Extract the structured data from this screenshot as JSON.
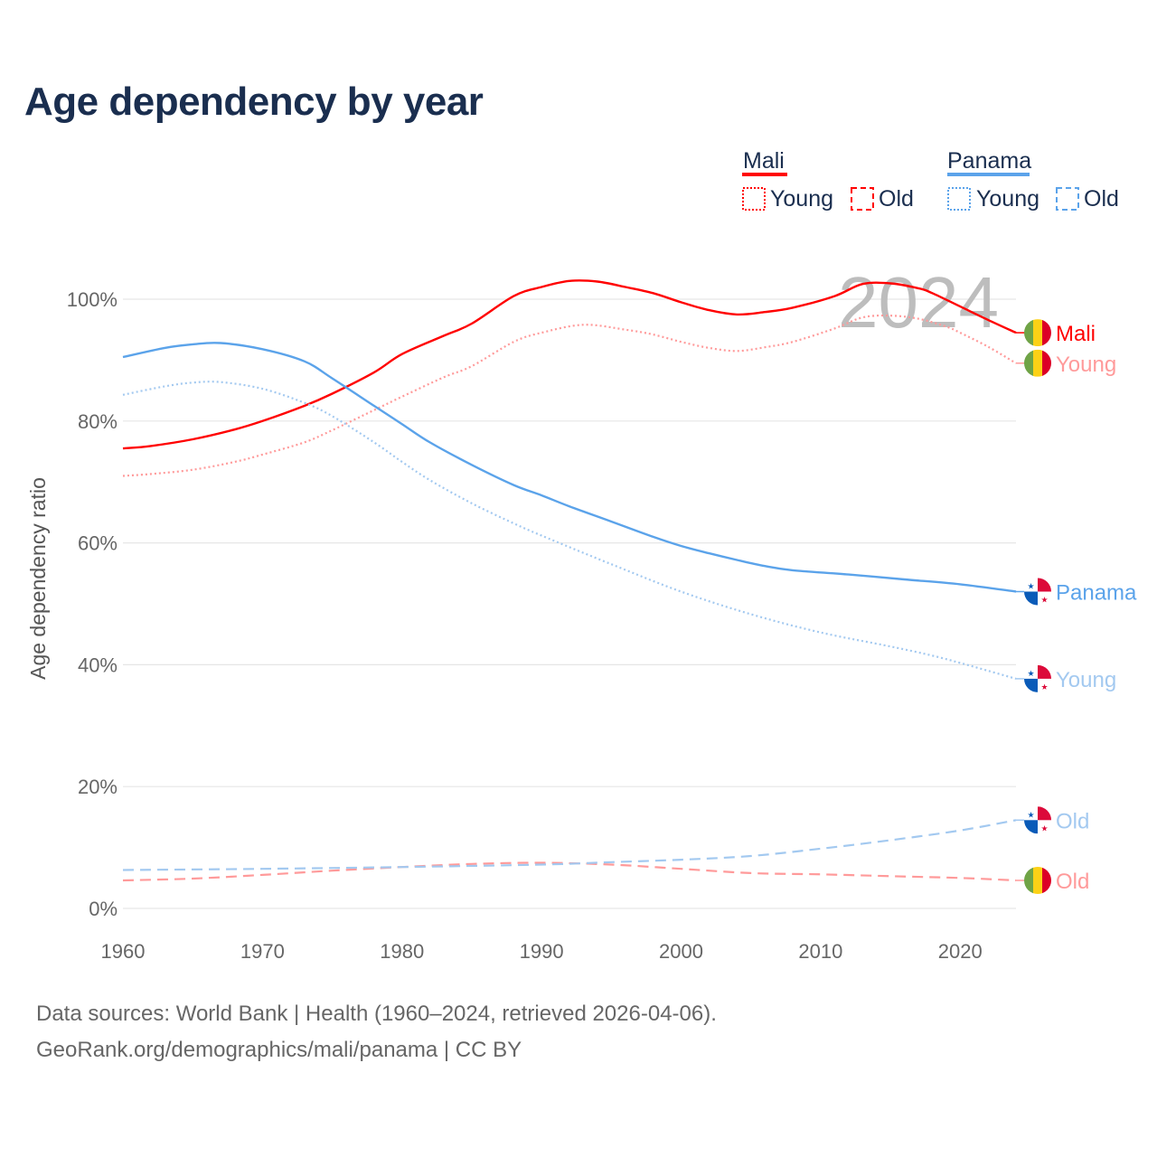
{
  "title": "Age dependency by year",
  "sources": {
    "line1": "Data sources: World Bank | Health (1960–2024, retrieved 2026-04-06).",
    "line2": "GeoRank.org/demographics/mali/panama | CC BY"
  },
  "legend": {
    "groups": [
      {
        "name": "Mali",
        "color": "#ff0000",
        "items": [
          "Young",
          "Old"
        ]
      },
      {
        "name": "Panama",
        "color": "#5ba3ea",
        "items": [
          "Young",
          "Old"
        ]
      }
    ]
  },
  "chart_data": {
    "type": "line",
    "title": "Age dependency by year",
    "xlabel": "",
    "ylabel": "Age dependency ratio",
    "xlim": [
      1960,
      2024
    ],
    "ylim": [
      0,
      100
    ],
    "xticks": [
      "1960",
      "1970",
      "1980",
      "1990",
      "2000",
      "2010",
      "2020"
    ],
    "yticks": [
      "0%",
      "20%",
      "40%",
      "60%",
      "80%",
      "100%"
    ],
    "grid": true,
    "year_watermark": "2024",
    "series": [
      {
        "name": "Mali",
        "label": "Mali",
        "flag": "mali",
        "style": "solid",
        "color": "#ff0000",
        "points": [
          [
            1960,
            75.5
          ],
          [
            1962,
            75.9
          ],
          [
            1965,
            77
          ],
          [
            1968,
            78.6
          ],
          [
            1970,
            80
          ],
          [
            1973,
            82.5
          ],
          [
            1975,
            84.5
          ],
          [
            1978,
            88
          ],
          [
            1980,
            91
          ],
          [
            1983,
            94
          ],
          [
            1985,
            96
          ],
          [
            1988,
            100.5
          ],
          [
            1990,
            102
          ],
          [
            1992,
            103
          ],
          [
            1994,
            102.9
          ],
          [
            1996,
            102
          ],
          [
            1998,
            101
          ],
          [
            2000,
            99.5
          ],
          [
            2002,
            98.2
          ],
          [
            2004,
            97.5
          ],
          [
            2006,
            97.9
          ],
          [
            2008,
            98.6
          ],
          [
            2011,
            100.5
          ],
          [
            2013,
            102.5
          ],
          [
            2015,
            102.6
          ],
          [
            2017,
            101.8
          ],
          [
            2018,
            101
          ],
          [
            2020,
            98.8
          ],
          [
            2022,
            96.6
          ],
          [
            2024,
            94.5
          ]
        ]
      },
      {
        "name": "Mali Young",
        "label": "Young",
        "flag": "mali",
        "style": "dotted",
        "color": "#ff9a9a",
        "points": [
          [
            1960,
            71
          ],
          [
            1962,
            71.3
          ],
          [
            1965,
            72
          ],
          [
            1968,
            73.3
          ],
          [
            1970,
            74.5
          ],
          [
            1973,
            76.5
          ],
          [
            1975,
            78.5
          ],
          [
            1978,
            81.8
          ],
          [
            1980,
            84
          ],
          [
            1983,
            87.2
          ],
          [
            1985,
            89
          ],
          [
            1988,
            93
          ],
          [
            1990,
            94.5
          ],
          [
            1993,
            95.8
          ],
          [
            1996,
            95
          ],
          [
            1998,
            94.2
          ],
          [
            2000,
            93
          ],
          [
            2002,
            92
          ],
          [
            2004,
            91.5
          ],
          [
            2006,
            92.1
          ],
          [
            2008,
            93
          ],
          [
            2011,
            95.2
          ],
          [
            2013,
            97
          ],
          [
            2015,
            97.3
          ],
          [
            2017,
            96.8
          ],
          [
            2019,
            95.5
          ],
          [
            2020,
            94.5
          ],
          [
            2022,
            92.2
          ],
          [
            2024,
            89.5
          ]
        ]
      },
      {
        "name": "Mali Old",
        "label": "Old",
        "flag": "mali",
        "style": "dashed",
        "color": "#ff9a9a",
        "points": [
          [
            1960,
            4.6
          ],
          [
            1965,
            4.9
          ],
          [
            1970,
            5.5
          ],
          [
            1975,
            6.2
          ],
          [
            1980,
            6.8
          ],
          [
            1985,
            7.3
          ],
          [
            1990,
            7.5
          ],
          [
            1995,
            7.2
          ],
          [
            2000,
            6.5
          ],
          [
            2005,
            5.8
          ],
          [
            2010,
            5.6
          ],
          [
            2015,
            5.3
          ],
          [
            2020,
            5.0
          ],
          [
            2024,
            4.6
          ]
        ]
      },
      {
        "name": "Panama",
        "label": "Panama",
        "flag": "panama",
        "style": "solid",
        "color": "#5ba3ea",
        "points": [
          [
            1960,
            90.5
          ],
          [
            1963,
            92
          ],
          [
            1965,
            92.6
          ],
          [
            1967,
            92.8
          ],
          [
            1970,
            91.8
          ],
          [
            1973,
            89.8
          ],
          [
            1975,
            87
          ],
          [
            1978,
            82.5
          ],
          [
            1980,
            79.5
          ],
          [
            1982,
            76.5
          ],
          [
            1985,
            72.8
          ],
          [
            1988,
            69.5
          ],
          [
            1990,
            67.8
          ],
          [
            1992,
            66
          ],
          [
            1995,
            63.5
          ],
          [
            1998,
            61
          ],
          [
            2000,
            59.5
          ],
          [
            2002,
            58.3
          ],
          [
            2004,
            57.2
          ],
          [
            2006,
            56.2
          ],
          [
            2008,
            55.5
          ],
          [
            2012,
            54.8
          ],
          [
            2016,
            54
          ],
          [
            2020,
            53.2
          ],
          [
            2024,
            52
          ]
        ]
      },
      {
        "name": "Panama Young",
        "label": "Young",
        "flag": "panama",
        "style": "dotted",
        "color": "#a3c9f0",
        "points": [
          [
            1960,
            84.3
          ],
          [
            1963,
            85.7
          ],
          [
            1965,
            86.3
          ],
          [
            1967,
            86.4
          ],
          [
            1970,
            85.3
          ],
          [
            1973,
            83
          ],
          [
            1975,
            80.8
          ],
          [
            1978,
            76.5
          ],
          [
            1980,
            73.3
          ],
          [
            1982,
            70.3
          ],
          [
            1985,
            66.5
          ],
          [
            1988,
            63.2
          ],
          [
            1990,
            61.2
          ],
          [
            1995,
            56.5
          ],
          [
            2000,
            52
          ],
          [
            2005,
            48.3
          ],
          [
            2010,
            45.3
          ],
          [
            2015,
            43
          ],
          [
            2018,
            41.5
          ],
          [
            2020,
            40.3
          ],
          [
            2022,
            39
          ],
          [
            2024,
            37.7
          ]
        ]
      },
      {
        "name": "Panama Old",
        "label": "Old",
        "flag": "panama",
        "style": "dashed",
        "color": "#a3c9f0",
        "points": [
          [
            1960,
            6.3
          ],
          [
            1970,
            6.5
          ],
          [
            1980,
            6.8
          ],
          [
            1990,
            7.2
          ],
          [
            1995,
            7.6
          ],
          [
            2000,
            8
          ],
          [
            2005,
            8.6
          ],
          [
            2010,
            9.8
          ],
          [
            2015,
            11.2
          ],
          [
            2020,
            12.8
          ],
          [
            2024,
            14.5
          ]
        ]
      }
    ]
  }
}
